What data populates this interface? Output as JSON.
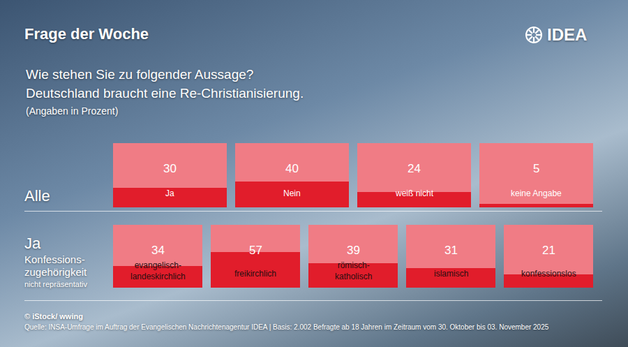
{
  "header": {
    "title": "Frage der Woche",
    "logo": "IDEA",
    "question": [
      "Wie stehen Sie zu folgender Aussage?",
      "Deutschland braucht eine Re-Christianisierung."
    ],
    "note": "(Angaben in Prozent)"
  },
  "chart_data": [
    {
      "type": "bar",
      "title": "Alle",
      "categories": [
        "Ja",
        "Nein",
        "weiß nicht",
        "keine Angabe"
      ],
      "values": [
        30,
        40,
        24,
        5
      ],
      "color": "#e11d2b",
      "ylim": [
        0,
        100
      ],
      "yticks": [],
      "tick_labels": false,
      "data_labels": true
    },
    {
      "type": "bar",
      "title": "Ja",
      "subtitle": "Konfessions-zugehörigkeit",
      "note": "nicht repräsentativ",
      "categories": [
        "evangelisch-landeskirchlich",
        "freikirchlich",
        "römisch-katholisch",
        "islamisch",
        "konfessionslos"
      ],
      "values": [
        34,
        57,
        39,
        31,
        21
      ],
      "color": "#e11d2b",
      "ylim": [
        0,
        100
      ],
      "yticks": [],
      "tick_labels": false,
      "data_labels": true
    }
  ],
  "footer": {
    "credit": "© iStock/ wwing",
    "source": "Quelle: INSA-Umfrage im Auftrag der Evangelischen Nachrichtenagentur IDEA | Basis: 2.002 Befragte ab 18 Jahren im Zeitraum vom 30. Oktober bis 03. November 2025"
  }
}
